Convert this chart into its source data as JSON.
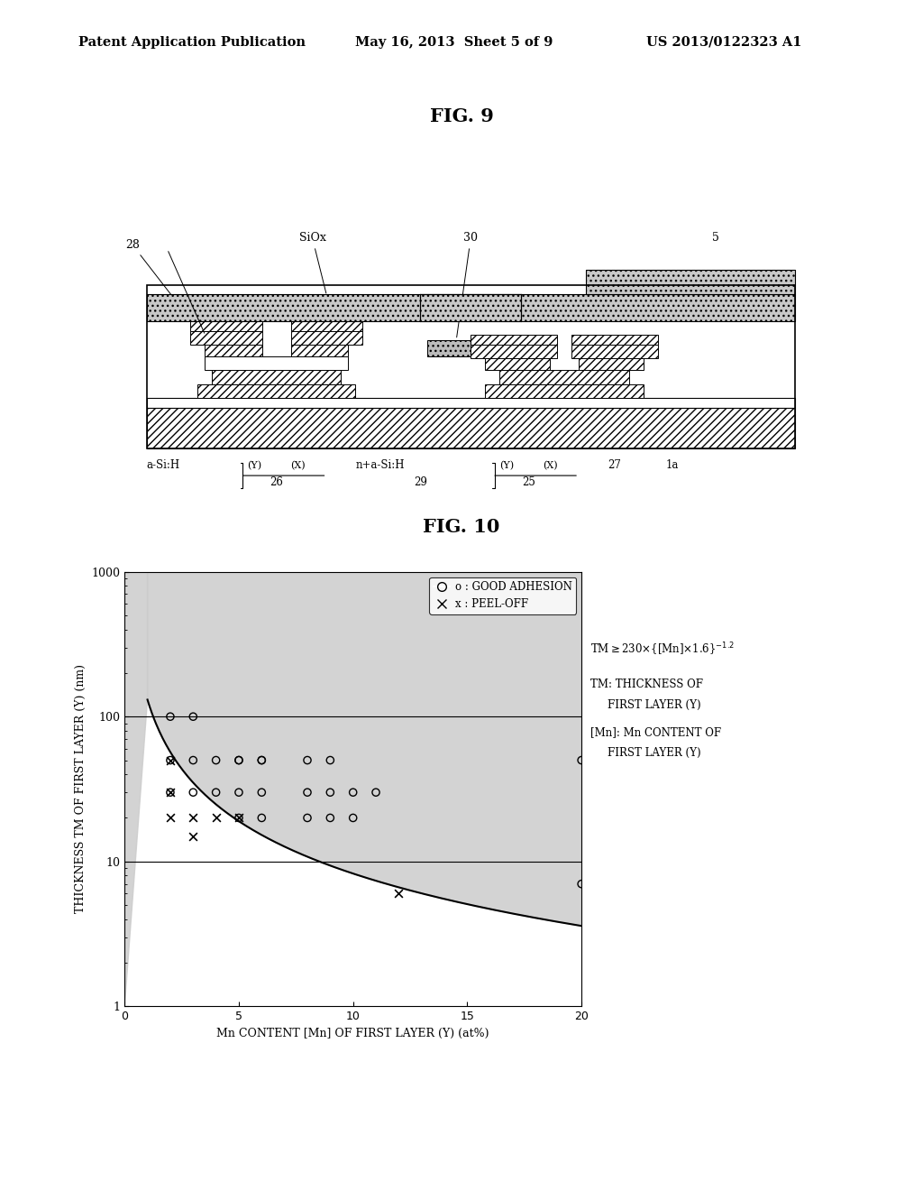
{
  "header_left": "Patent Application Publication",
  "header_mid": "May 16, 2013  Sheet 5 of 9",
  "header_right": "US 2013/0122323 A1",
  "fig9_title": "FIG. 9",
  "fig10_title": "FIG. 10",
  "good_adhesion_points": [
    [
      2,
      100
    ],
    [
      3,
      100
    ],
    [
      2,
      50
    ],
    [
      3,
      50
    ],
    [
      4,
      50
    ],
    [
      5,
      50
    ],
    [
      6,
      50
    ],
    [
      5,
      50
    ],
    [
      6,
      50
    ],
    [
      8,
      50
    ],
    [
      9,
      50
    ],
    [
      2,
      30
    ],
    [
      3,
      30
    ],
    [
      4,
      30
    ],
    [
      5,
      30
    ],
    [
      6,
      30
    ],
    [
      8,
      30
    ],
    [
      9,
      30
    ],
    [
      10,
      30
    ],
    [
      11,
      30
    ],
    [
      5,
      20
    ],
    [
      6,
      20
    ],
    [
      8,
      20
    ],
    [
      9,
      20
    ],
    [
      10,
      20
    ],
    [
      20,
      50
    ],
    [
      20,
      7
    ]
  ],
  "peel_off_points": [
    [
      2,
      50
    ],
    [
      2,
      30
    ],
    [
      2,
      20
    ],
    [
      3,
      20
    ],
    [
      3,
      15
    ],
    [
      4,
      20
    ],
    [
      5,
      20
    ],
    [
      12,
      6
    ]
  ],
  "xlabel": "Mn CONTENT [Mn] OF FIRST LAYER (Y) (at%)",
  "ylabel": "THICKNESS TM OF FIRST LAYER (Y) (nm)",
  "xlim": [
    0,
    20
  ],
  "ylim": [
    1,
    1000
  ],
  "xticks": [
    0,
    5,
    10,
    15,
    20
  ],
  "background_color": "#ffffff",
  "shaded_color": "#cccccc"
}
